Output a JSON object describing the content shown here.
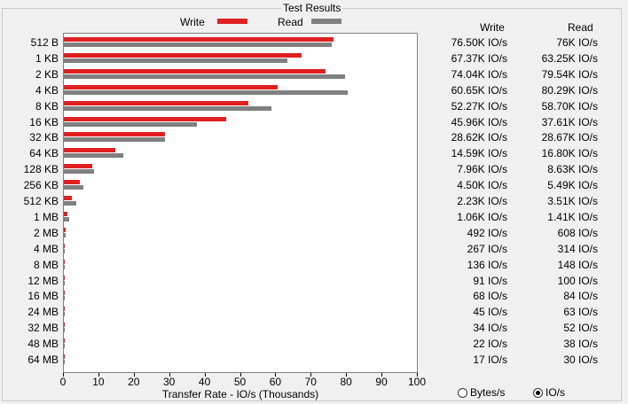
{
  "group_title": "Test Results",
  "legend": {
    "write_label": "Write",
    "read_label": "Read"
  },
  "colors": {
    "write": "#e02020",
    "read": "#808080"
  },
  "columns": {
    "write": "Write",
    "read": "Read"
  },
  "rows": [
    {
      "label": "512 B",
      "write": "76.50K IO/s",
      "read": "76K IO/s"
    },
    {
      "label": "1 KB",
      "write": "67.37K IO/s",
      "read": "63.25K IO/s"
    },
    {
      "label": "2 KB",
      "write": "74.04K IO/s",
      "read": "79.54K IO/s"
    },
    {
      "label": "4 KB",
      "write": "60.65K IO/s",
      "read": "80.29K IO/s"
    },
    {
      "label": "8 KB",
      "write": "52.27K IO/s",
      "read": "58.70K IO/s"
    },
    {
      "label": "16 KB",
      "write": "45.96K IO/s",
      "read": "37.61K IO/s"
    },
    {
      "label": "32 KB",
      "write": "28.62K IO/s",
      "read": "28.67K IO/s"
    },
    {
      "label": "64 KB",
      "write": "14.59K IO/s",
      "read": "16.80K IO/s"
    },
    {
      "label": "128 KB",
      "write": "7.96K IO/s",
      "read": "8.63K IO/s"
    },
    {
      "label": "256 KB",
      "write": "4.50K IO/s",
      "read": "5.49K IO/s"
    },
    {
      "label": "512 KB",
      "write": "2.23K IO/s",
      "read": "3.51K IO/s"
    },
    {
      "label": "1 MB",
      "write": "1.06K IO/s",
      "read": "1.41K IO/s"
    },
    {
      "label": "2 MB",
      "write": "492 IO/s",
      "read": "608 IO/s"
    },
    {
      "label": "4 MB",
      "write": "267 IO/s",
      "read": "314 IO/s"
    },
    {
      "label": "8 MB",
      "write": "136 IO/s",
      "read": "148 IO/s"
    },
    {
      "label": "12 MB",
      "write": "91 IO/s",
      "read": "100 IO/s"
    },
    {
      "label": "16 MB",
      "write": "68 IO/s",
      "read": "84 IO/s"
    },
    {
      "label": "24 MB",
      "write": "45 IO/s",
      "read": "63 IO/s"
    },
    {
      "label": "32 MB",
      "write": "34 IO/s",
      "read": "52 IO/s"
    },
    {
      "label": "48 MB",
      "write": "22 IO/s",
      "read": "38 IO/s"
    },
    {
      "label": "64 MB",
      "write": "17 IO/s",
      "read": "30 IO/s"
    }
  ],
  "chart_data": {
    "type": "bar",
    "orientation": "horizontal",
    "categories": [
      "512 B",
      "1 KB",
      "2 KB",
      "4 KB",
      "8 KB",
      "16 KB",
      "32 KB",
      "64 KB",
      "128 KB",
      "256 KB",
      "512 KB",
      "1 MB",
      "2 MB",
      "4 MB",
      "8 MB",
      "12 MB",
      "16 MB",
      "24 MB",
      "32 MB",
      "48 MB",
      "64 MB"
    ],
    "series": [
      {
        "name": "Write",
        "values": [
          76.5,
          67.37,
          74.04,
          60.65,
          52.27,
          45.96,
          28.62,
          14.59,
          7.96,
          4.5,
          2.23,
          1.06,
          0.492,
          0.267,
          0.136,
          0.091,
          0.068,
          0.045,
          0.034,
          0.022,
          0.017
        ]
      },
      {
        "name": "Read",
        "values": [
          76,
          63.25,
          79.54,
          80.29,
          58.7,
          37.61,
          28.67,
          16.8,
          8.63,
          5.49,
          3.51,
          1.41,
          0.608,
          0.314,
          0.148,
          0.1,
          0.084,
          0.063,
          0.052,
          0.038,
          0.03
        ]
      }
    ],
    "xlabel": "Transfer Rate - IO/s (Thousands)",
    "xlim": [
      0,
      100
    ],
    "xticks": [
      "0",
      "10",
      "20",
      "30",
      "40",
      "50",
      "60",
      "70",
      "80",
      "90",
      "100"
    ],
    "grid": false,
    "legend_position": "top"
  },
  "radio": {
    "options": [
      {
        "label": "Bytes/s",
        "selected": false
      },
      {
        "label": "IO/s",
        "selected": true
      }
    ]
  }
}
